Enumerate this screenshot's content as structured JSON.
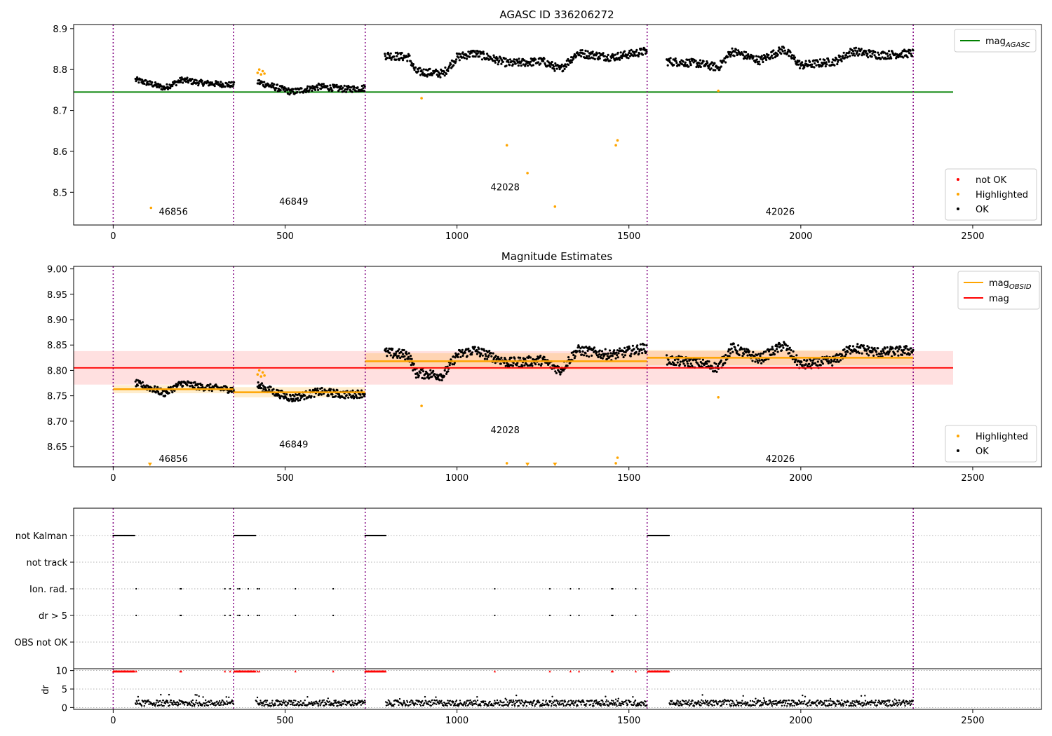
{
  "chart_data": [
    {
      "type": "scatter",
      "title": "AGASC ID 336206272",
      "xlim": [
        -115,
        2700
      ],
      "ylim": [
        8.42,
        8.91
      ],
      "xticks": [
        0,
        500,
        1000,
        1500,
        2000,
        2500
      ],
      "yticks": [
        8.5,
        8.6,
        8.7,
        8.8,
        8.9
      ],
      "obsid_boundaries": [
        0,
        350,
        733,
        1553,
        2327
      ],
      "obsid_labels": [
        {
          "text": "46856",
          "x": 175,
          "y": 8.445
        },
        {
          "text": "46849",
          "x": 525,
          "y": 8.47
        },
        {
          "text": "42028",
          "x": 1140,
          "y": 8.505
        },
        {
          "text": "42026",
          "x": 1940,
          "y": 8.445
        }
      ],
      "mag_agasc": {
        "value": 8.745,
        "x": [
          -115,
          2443
        ],
        "color": "#008000"
      },
      "legend_lines": [
        {
          "label": "mag",
          "sub": "AGASC",
          "color": "#008000"
        }
      ],
      "legend_points": [
        {
          "label": "not OK",
          "color": "#ff0000"
        },
        {
          "label": "Highlighted",
          "color": "#ffa500"
        },
        {
          "label": "OK",
          "color": "#000000"
        }
      ],
      "ok_segments": [
        {
          "x0": 65,
          "x1": 352,
          "ctrl": [
            [
              65,
              8.775
            ],
            [
              110,
              8.765
            ],
            [
              150,
              8.755
            ],
            [
              200,
              8.775
            ],
            [
              250,
              8.768
            ],
            [
              300,
              8.765
            ],
            [
              352,
              8.762
            ]
          ],
          "noise": 0.007
        },
        {
          "x0": 420,
          "x1": 733,
          "ctrl": [
            [
              420,
              8.77
            ],
            [
              470,
              8.757
            ],
            [
              520,
              8.745
            ],
            [
              600,
              8.758
            ],
            [
              680,
              8.752
            ],
            [
              733,
              8.755
            ]
          ],
          "noise": 0.008
        },
        {
          "x0": 790,
          "x1": 1553,
          "ctrl": [
            [
              790,
              8.835
            ],
            [
              860,
              8.83
            ],
            [
              880,
              8.795
            ],
            [
              960,
              8.79
            ],
            [
              1000,
              8.83
            ],
            [
              1050,
              8.84
            ],
            [
              1150,
              8.815
            ],
            [
              1250,
              8.82
            ],
            [
              1300,
              8.8
            ],
            [
              1350,
              8.84
            ],
            [
              1450,
              8.83
            ],
            [
              1553,
              8.845
            ]
          ],
          "noise": 0.01
        },
        {
          "x0": 1610,
          "x1": 2327,
          "ctrl": [
            [
              1610,
              8.82
            ],
            [
              1700,
              8.815
            ],
            [
              1760,
              8.805
            ],
            [
              1800,
              8.845
            ],
            [
              1880,
              8.822
            ],
            [
              1950,
              8.85
            ],
            [
              2000,
              8.81
            ],
            [
              2100,
              8.82
            ],
            [
              2150,
              8.845
            ],
            [
              2230,
              8.835
            ],
            [
              2327,
              8.84
            ]
          ],
          "noise": 0.01
        }
      ],
      "highlighted": [
        [
          110,
          8.462
        ],
        [
          420,
          8.792
        ],
        [
          425,
          8.8
        ],
        [
          430,
          8.788
        ],
        [
          435,
          8.796
        ],
        [
          440,
          8.79
        ],
        [
          897,
          8.73
        ],
        [
          1145,
          8.615
        ],
        [
          1205,
          8.547
        ],
        [
          1285,
          8.465
        ],
        [
          1462,
          8.615
        ],
        [
          1467,
          8.627
        ],
        [
          1760,
          8.748
        ]
      ]
    },
    {
      "type": "scatter",
      "title": "Magnitude Estimates",
      "xlim": [
        -115,
        2700
      ],
      "ylim": [
        8.61,
        9.005
      ],
      "xticks": [
        0,
        500,
        1000,
        1500,
        2000,
        2500
      ],
      "yticks": [
        8.65,
        8.7,
        8.75,
        8.8,
        8.85,
        8.9,
        8.95,
        9.0
      ],
      "obsid_boundaries": [
        0,
        350,
        733,
        1553,
        2327
      ],
      "obsid_labels": [
        {
          "text": "46856",
          "x": 175,
          "y": 8.62
        },
        {
          "text": "46849",
          "x": 525,
          "y": 8.648
        },
        {
          "text": "42028",
          "x": 1140,
          "y": 8.676
        },
        {
          "text": "42026",
          "x": 1940,
          "y": 8.62
        }
      ],
      "mag": {
        "value": 8.805,
        "band": [
          8.772,
          8.838
        ],
        "x": [
          -115,
          2443
        ],
        "color": "#ff0000"
      },
      "mag_obsid": [
        {
          "x0": 0,
          "x1": 350,
          "value": 8.763,
          "band": [
            8.755,
            8.771
          ]
        },
        {
          "x0": 350,
          "x1": 733,
          "value": 8.757,
          "band": [
            8.747,
            8.767
          ]
        },
        {
          "x0": 733,
          "x1": 1553,
          "value": 8.818,
          "band": [
            8.802,
            8.834
          ]
        },
        {
          "x0": 1553,
          "x1": 2327,
          "value": 8.825,
          "band": [
            8.81,
            8.84
          ]
        }
      ],
      "legend_lines": [
        {
          "label": "mag",
          "sub": "OBSID",
          "color": "#ffa500"
        },
        {
          "label": "mag",
          "sub": "",
          "color": "#ff0000"
        }
      ],
      "legend_points": [
        {
          "label": "Highlighted",
          "color": "#ffa500"
        },
        {
          "label": "OK",
          "color": "#000000"
        }
      ],
      "highlighted": [
        [
          420,
          8.792
        ],
        [
          425,
          8.8
        ],
        [
          430,
          8.788
        ],
        [
          435,
          8.796
        ],
        [
          440,
          8.79
        ],
        [
          897,
          8.73
        ],
        [
          1145,
          8.617
        ],
        [
          1462,
          8.617
        ],
        [
          1467,
          8.628
        ],
        [
          1760,
          8.747
        ]
      ],
      "offscale_markers": [
        107,
        1205,
        1285
      ]
    },
    {
      "type": "scatter",
      "xlim": [
        -115,
        2700
      ],
      "categories": [
        "not Kalman",
        "not track",
        "Ion. rad.",
        "dr > 5",
        "OBS not OK"
      ],
      "flag_runs": {
        "not Kalman": [
          [
            0,
            62
          ],
          [
            352,
            415
          ],
          [
            733,
            793
          ],
          [
            1555,
            1618
          ]
        ],
        "not track": [],
        "Ion. rad.": [
          67,
          195,
          198,
          325,
          340,
          363,
          368,
          393,
          420,
          425,
          530,
          640,
          1110,
          1270,
          1330,
          1355,
          1450,
          1453,
          1520
        ],
        "dr > 5": [
          67,
          195,
          198,
          325,
          340,
          363,
          368,
          393,
          420,
          425,
          530,
          640,
          1110,
          1270,
          1330,
          1355,
          1450,
          1453,
          1520
        ],
        "OBS not OK": []
      },
      "obsid_boundaries": [
        0,
        350,
        733,
        1553,
        2327
      ]
    },
    {
      "type": "scatter",
      "ylabel": "dr",
      "xlim": [
        -115,
        2700
      ],
      "ylim": [
        -0.5,
        10.5
      ],
      "xticks": [
        0,
        500,
        1000,
        1500,
        2000,
        2500
      ],
      "yticks": [
        0,
        5,
        10
      ],
      "obsid_boundaries": [
        0,
        350,
        733,
        1553,
        2327
      ],
      "dr_segments": [
        [
          65,
          350
        ],
        [
          415,
          733
        ],
        [
          793,
          1553
        ],
        [
          1618,
          2327
        ]
      ],
      "clipped_runs": [
        [
          0,
          62
        ],
        [
          352,
          415
        ],
        [
          733,
          793
        ],
        [
          1555,
          1618
        ]
      ],
      "clipped_points": [
        67,
        195,
        198,
        325,
        340,
        363,
        368,
        393,
        420,
        425,
        530,
        640,
        1110,
        1270,
        1330,
        1355,
        1450,
        1453,
        1520
      ]
    }
  ]
}
